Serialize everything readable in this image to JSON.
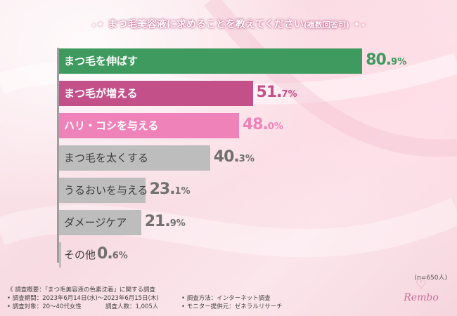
{
  "header": {
    "title": "まつ毛美容液に求めることを教えてください",
    "title_note": "(複数回答可)"
  },
  "chart_data": {
    "type": "bar",
    "orientation": "horizontal",
    "title": "まつ毛美容液に求めることを教えてください(複数回答可)",
    "categories": [
      "まつ毛を伸ばす",
      "まつ毛が増える",
      "ハリ・コシを与える",
      "まつ毛を太くする",
      "うるおいを与える",
      "ダメージケア",
      "その他"
    ],
    "values": [
      80.9,
      51.7,
      48.0,
      40.3,
      23.1,
      21.9,
      0.6
    ],
    "value_labels": [
      {
        "num": "80.",
        "dec": "9%"
      },
      {
        "num": "51.",
        "dec": "7%"
      },
      {
        "num": "48.",
        "dec": "0%"
      },
      {
        "num": "40.",
        "dec": "3%"
      },
      {
        "num": "23.",
        "dec": "1%"
      },
      {
        "num": "21.",
        "dec": "9%"
      },
      {
        "num": "0.",
        "dec": "6%"
      }
    ],
    "colors": [
      "#3f9a5f",
      "#c4508a",
      "#ef82b8",
      "#bdbdbd",
      "#bdbdbd",
      "#bdbdbd",
      "#bdbdbd"
    ],
    "value_colors": [
      "#3f9a5f",
      "#c4508a",
      "#ef82b8",
      "#707070",
      "#707070",
      "#707070",
      "#707070"
    ],
    "xlim": [
      0,
      100
    ],
    "grid": false,
    "legend": "none"
  },
  "footer": {
    "sample": "(n=650人)",
    "lines": [
      "《 調査概要：「まつ毛美容液の色素沈着」に関する調査",
      "• 調査期間：2023年6月14日(水)～2023年6月15日(木)",
      "• 調査対象：20～40代女性",
      "調査人数：1,005人",
      "• 調査方法：インターネット調査",
      "• モニター提供元：ゼネラルリサーチ"
    ],
    "brand": "Rembo"
  }
}
